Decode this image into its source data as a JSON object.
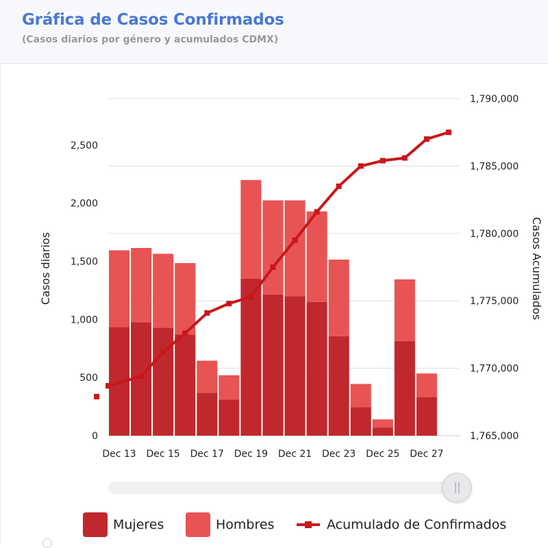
{
  "header": {
    "title": "Gráfica de Casos Confirmados",
    "subtitle": "(Casos diarios por género y acumulados CDMX)"
  },
  "legend": {
    "items": [
      {
        "label": "Mujeres",
        "kind": "bar",
        "color": "#c0282d"
      },
      {
        "label": "Hombres",
        "kind": "bar",
        "color": "#e85454"
      },
      {
        "label": "Acumulado de Confirmados",
        "kind": "line",
        "color": "#c9171b"
      }
    ]
  },
  "chart_data": {
    "type": "bar",
    "title": "Gráfica de Casos Confirmados",
    "subtitle": "(Casos diarios por género y acumulados CDMX)",
    "x": [
      "Dec 13",
      "Dec 14",
      "Dec 15",
      "Dec 16",
      "Dec 17",
      "Dec 18",
      "Dec 19",
      "Dec 20",
      "Dec 21",
      "Dec 22",
      "Dec 23",
      "Dec 24",
      "Dec 25",
      "Dec 26",
      "Dec 27",
      "Dec 28"
    ],
    "x_tick_labels": [
      "Dec 13",
      "Dec 15",
      "Dec 17",
      "Dec 19",
      "Dec 21",
      "Dec 23",
      "Dec 25",
      "Dec 27"
    ],
    "ylabel": "Casos diarios",
    "ylim": [
      0,
      2900
    ],
    "y_ticks": [
      0,
      500,
      1000,
      1500,
      2000,
      2500
    ],
    "y_tick_labels": [
      "0",
      "500",
      "1,000",
      "1,500",
      "2,000",
      "2,500"
    ],
    "y2label": "Casos Acumulados",
    "y2lim": [
      1765000,
      1790000
    ],
    "y2_ticks": [
      1765000,
      1770000,
      1775000,
      1780000,
      1785000,
      1790000
    ],
    "y2_tick_labels": [
      "1,765,000",
      "1,770,000",
      "1,775,000",
      "1,780,000",
      "1,785,000",
      "1,790,000"
    ],
    "stacked": true,
    "grid": true,
    "legend_position": "bottom",
    "series": [
      {
        "name": "Mujeres",
        "type": "bar",
        "axis": "left",
        "color": "#c0282d",
        "values": [
          935,
          975,
          930,
          870,
          370,
          310,
          1350,
          1215,
          1200,
          1150,
          855,
          245,
          70,
          815,
          330,
          null
        ]
      },
      {
        "name": "Hombres",
        "type": "bar",
        "axis": "left",
        "color": "#e85454",
        "values": [
          660,
          640,
          635,
          615,
          275,
          210,
          850,
          810,
          825,
          780,
          660,
          200,
          70,
          530,
          205,
          null
        ]
      },
      {
        "name": "Acumulado de Confirmados",
        "type": "line",
        "axis": "right",
        "color": "#c9171b",
        "values": [
          1768700,
          1769400,
          1771200,
          1772600,
          1774100,
          1774800,
          1775300,
          1777500,
          1779500,
          1781600,
          1783500,
          1785000,
          1785400,
          1785600,
          1787000,
          1787500
        ]
      }
    ]
  }
}
